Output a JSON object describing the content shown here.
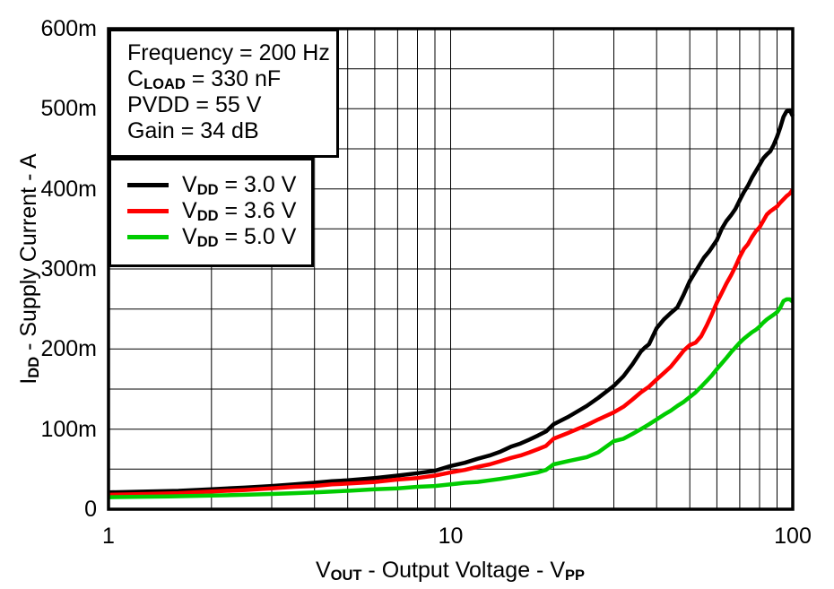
{
  "figure": {
    "background": "#FFFFFF",
    "annotation_box": {
      "lines": [
        [
          {
            "t": "Frequency = 200 Hz"
          }
        ],
        [
          {
            "t": "C"
          },
          {
            "t": "LOAD",
            "sub": true
          },
          {
            "t": " = 330 nF"
          }
        ],
        [
          {
            "t": "PVDD = 55 V"
          }
        ],
        [
          {
            "t": "Gain = 34 dB"
          }
        ]
      ]
    },
    "legend": {
      "position": "upper-left",
      "items": [
        {
          "color": "#000000",
          "parts": [
            {
              "t": "V"
            },
            {
              "t": "DD",
              "sub": true
            },
            {
              "t": " = 3.0 V"
            }
          ]
        },
        {
          "color": "#FF0000",
          "parts": [
            {
              "t": "V"
            },
            {
              "t": "DD",
              "sub": true
            },
            {
              "t": " = 3.6 V"
            }
          ]
        },
        {
          "color": "#00CC00",
          "parts": [
            {
              "t": "V"
            },
            {
              "t": "DD",
              "sub": true
            },
            {
              "t": " = 5.0 V"
            }
          ]
        }
      ]
    }
  },
  "chart_data": {
    "type": "line",
    "title": "",
    "xlabel": "VOUT - Output Voltage - VPP",
    "xlabel_parts": [
      {
        "t": "V"
      },
      {
        "t": "OUT",
        "sub": true
      },
      {
        "t": " - Output Voltage - "
      },
      {
        "t": "V"
      },
      {
        "t": "PP",
        "sub": true
      }
    ],
    "ylabel": "IDD - Supply Current - A",
    "ylabel_parts": [
      {
        "t": "I"
      },
      {
        "t": "DD",
        "sub": true
      },
      {
        "t": " - Supply Current - A"
      }
    ],
    "x_scale": "log",
    "xlim": [
      1,
      100
    ],
    "ylim_A": [
      0,
      0.6
    ],
    "grid": true,
    "y_gridline_step_A": 0.05,
    "x_minor_gridlines": [
      2,
      3,
      4,
      5,
      6,
      7,
      8,
      9,
      10,
      20,
      30,
      40,
      50,
      60,
      70,
      80,
      90
    ],
    "x_ticks": [
      {
        "v": 1,
        "label": "1"
      },
      {
        "v": 10,
        "label": "10"
      },
      {
        "v": 100,
        "label": "100"
      }
    ],
    "y_ticks": [
      {
        "v_mA": 0,
        "label": "0"
      },
      {
        "v_mA": 100,
        "label": "100m"
      },
      {
        "v_mA": 200,
        "label": "200m"
      },
      {
        "v_mA": 300,
        "label": "300m"
      },
      {
        "v_mA": 400,
        "label": "400m"
      },
      {
        "v_mA": 500,
        "label": "500m"
      },
      {
        "v_mA": 600,
        "label": "600m"
      }
    ],
    "annotation_lines_text": [
      "Frequency = 200 Hz",
      "CLOAD = 330 nF",
      "PVDD = 55 V",
      "Gain = 34 dB"
    ],
    "series": [
      {
        "name": "VDD = 3.0 V",
        "color": "#000000",
        "x_Vpp": [
          1,
          1.3,
          1.6,
          2,
          2.5,
          3,
          3.5,
          4,
          4.5,
          5,
          6,
          7,
          8,
          9,
          10,
          11,
          12,
          13,
          14,
          15,
          16,
          17,
          18,
          19,
          20,
          22,
          25,
          27,
          30,
          32,
          34,
          36,
          37,
          38,
          40,
          42,
          44,
          46,
          48,
          50,
          52,
          55,
          57,
          60,
          62,
          64,
          66,
          68,
          70,
          72,
          74,
          76,
          78,
          80,
          82,
          84,
          86,
          88,
          90,
          92,
          94,
          96,
          98,
          100
        ],
        "y_mA": [
          21,
          22,
          23,
          25,
          27,
          29,
          31,
          33,
          35,
          36,
          39,
          42,
          45,
          48,
          54,
          58,
          63,
          67,
          72,
          78,
          82,
          87,
          92,
          97,
          106,
          115,
          129,
          139,
          154,
          166,
          181,
          197,
          202,
          206,
          226,
          237,
          245,
          252,
          268,
          285,
          297,
          314,
          322,
          336,
          350,
          360,
          367,
          375,
          386,
          396,
          404,
          414,
          422,
          430,
          438,
          443,
          447,
          455,
          465,
          477,
          490,
          497,
          498,
          491
        ]
      },
      {
        "name": "VDD = 3.6 V",
        "color": "#FF0000",
        "x_Vpp": [
          1,
          1.3,
          1.6,
          2,
          2.5,
          3,
          3.5,
          4,
          4.5,
          5,
          6,
          7,
          8,
          9,
          10,
          11,
          12,
          13,
          14,
          15,
          16,
          17,
          18,
          19,
          20,
          22,
          25,
          27,
          30,
          32,
          34,
          36,
          38,
          40,
          42,
          44,
          46,
          48,
          50,
          52,
          54,
          56,
          58,
          60,
          62,
          64,
          66,
          68,
          70,
          72,
          74,
          76,
          78,
          80,
          82,
          84,
          86,
          88,
          90,
          92,
          94,
          96,
          98,
          100
        ],
        "y_mA": [
          18,
          19,
          20,
          22,
          24,
          26,
          28,
          29,
          31,
          32,
          34,
          37,
          39,
          42,
          46,
          49,
          53,
          56,
          60,
          64,
          67,
          71,
          75,
          79,
          88,
          95,
          105,
          112,
          121,
          128,
          137,
          146,
          153,
          162,
          170,
          178,
          188,
          198,
          205,
          208,
          216,
          229,
          243,
          258,
          270,
          282,
          292,
          303,
          315,
          325,
          331,
          340,
          347,
          352,
          360,
          368,
          372,
          375,
          378,
          383,
          387,
          391,
          394,
          399
        ]
      },
      {
        "name": "VDD = 5.0 V",
        "color": "#00CC00",
        "x_Vpp": [
          1,
          1.5,
          2,
          2.5,
          3,
          3.5,
          4,
          5,
          6,
          7,
          8,
          9,
          10,
          11,
          12,
          13,
          14,
          15,
          16,
          17,
          18,
          19,
          20,
          22,
          25,
          27,
          30,
          32,
          34,
          36,
          38,
          40,
          42,
          44,
          46,
          48,
          50,
          52,
          54,
          56,
          58,
          60,
          62,
          64,
          66,
          68,
          70,
          72,
          74,
          76,
          78,
          80,
          82,
          84,
          86,
          88,
          90,
          92,
          94,
          96,
          98,
          100
        ],
        "y_mA": [
          15,
          16,
          17,
          18,
          19,
          20,
          21,
          23,
          25,
          26,
          28,
          29,
          31,
          33,
          34,
          36,
          38,
          40,
          42,
          44,
          46,
          49,
          56,
          60,
          65,
          71,
          85,
          88,
          94,
          100,
          106,
          112,
          118,
          123,
          129,
          134,
          140,
          146,
          153,
          160,
          167,
          175,
          182,
          189,
          196,
          202,
          208,
          213,
          217,
          221,
          224,
          228,
          233,
          237,
          240,
          243,
          246,
          252,
          260,
          262,
          262,
          259
        ]
      }
    ]
  }
}
